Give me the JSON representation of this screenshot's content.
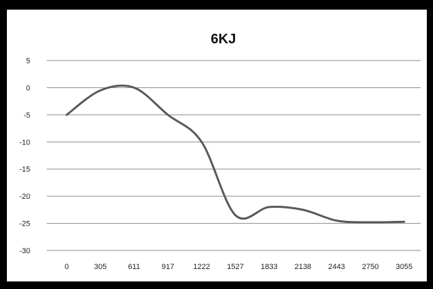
{
  "chart_data": {
    "type": "line",
    "title": "6KJ",
    "xlabel": "",
    "ylabel": "",
    "categories": [
      "0",
      "305",
      "611",
      "917",
      "1222",
      "1527",
      "1833",
      "2138",
      "2443",
      "2750",
      "3055"
    ],
    "x": [
      0,
      305,
      611,
      917,
      1222,
      1527,
      1833,
      2138,
      2443,
      2750,
      3055
    ],
    "series": [
      {
        "values": [
          -5,
          -0.5,
          0,
          -5,
          -10,
          -23.5,
          -22,
          -22.5,
          -24.5,
          -24.8,
          -24.7
        ]
      }
    ],
    "ylim": [
      -30,
      5
    ],
    "yticks": [
      "5",
      "0",
      "-5",
      "-10",
      "-15",
      "-20",
      "-25",
      "-30"
    ],
    "grid": true,
    "legend": "none",
    "colors": {
      "line": "#595959",
      "grid": "#8a8a8a",
      "frame": "#000000"
    }
  }
}
